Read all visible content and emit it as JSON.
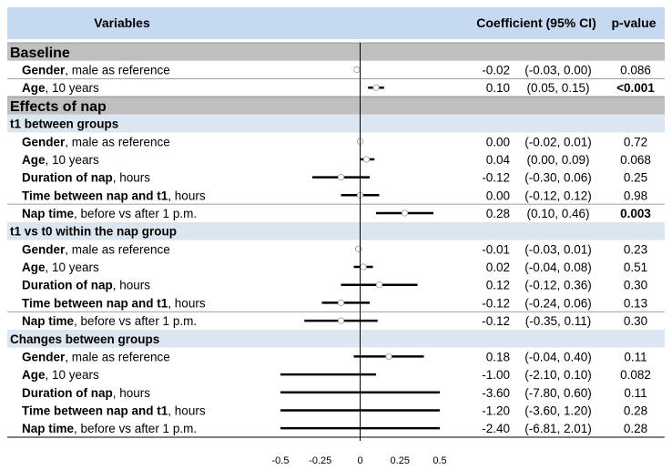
{
  "header": {
    "variables": "Variables",
    "coefficient": "Coefficient (95% CI)",
    "pvalue": "p-value"
  },
  "colors": {
    "header_bg": "#c5d9f1",
    "section_bg": "#bfbfbf",
    "subsection_bg": "#dce6f1",
    "axis": "#000000",
    "line": "#000000"
  },
  "chart_data": {
    "type": "forest",
    "xlim": [
      -0.5,
      0.5
    ],
    "xticks": [
      {
        "value": -0.5,
        "label": "-0.5"
      },
      {
        "value": -0.25,
        "label": "-0.25"
      },
      {
        "value": 0,
        "label": "0"
      },
      {
        "value": 0.25,
        "label": "0.25"
      },
      {
        "value": 0.5,
        "label": "0.5"
      }
    ],
    "reference_line": 0,
    "rows": [
      {
        "kind": "section",
        "label": "Baseline"
      },
      {
        "kind": "item",
        "bold": "Gender",
        "rest": ", male as reference",
        "coef": "-0.02",
        "ci": "(-0.03, 0.00)",
        "p": "0.086",
        "p_bold": false,
        "est": -0.02,
        "lo": -0.03,
        "hi": 0.0
      },
      {
        "kind": "item",
        "bold": "Age",
        "rest": ", 10 years",
        "coef": "0.10",
        "ci": "(0.05, 0.15)",
        "p": "<0.001",
        "p_bold": true,
        "est": 0.1,
        "lo": 0.05,
        "hi": 0.15
      },
      {
        "kind": "section",
        "label": "Effects of nap"
      },
      {
        "kind": "subsection",
        "label": "t1 between groups"
      },
      {
        "kind": "item",
        "bold": "Gender",
        "rest": ", male as reference",
        "coef": "0.00",
        "ci": "(-0.02, 0.01)",
        "p": "0.72",
        "p_bold": false,
        "est": 0.0,
        "lo": -0.02,
        "hi": 0.01
      },
      {
        "kind": "item",
        "bold": "Age",
        "rest": ", 10 years",
        "coef": "0.04",
        "ci": "(0.00, 0.09)",
        "p": "0.068",
        "p_bold": false,
        "est": 0.04,
        "lo": 0.0,
        "hi": 0.09
      },
      {
        "kind": "item",
        "bold": "Duration of nap",
        "rest": ", hours",
        "coef": "-0.12",
        "ci": "(-0.30, 0.06)",
        "p": "0.25",
        "p_bold": false,
        "est": -0.12,
        "lo": -0.3,
        "hi": 0.06
      },
      {
        "kind": "item",
        "bold": "Time between nap and t1",
        "rest": ", hours",
        "coef": "0.00",
        "ci": "(-0.12, 0.12)",
        "p": "0.98",
        "p_bold": false,
        "est": 0.0,
        "lo": -0.12,
        "hi": 0.12
      },
      {
        "kind": "item",
        "bold": "Nap time",
        "rest": ", before vs after 1 p.m.",
        "coef": "0.28",
        "ci": "(0.10, 0.46)",
        "p": "0.003",
        "p_bold": true,
        "est": 0.28,
        "lo": 0.1,
        "hi": 0.46
      },
      {
        "kind": "subsection",
        "label": "t1 vs t0 within the nap group"
      },
      {
        "kind": "item",
        "bold": "Gender",
        "rest": ", male as reference",
        "coef": "-0.01",
        "ci": "(-0.03, 0.01)",
        "p": "0.23",
        "p_bold": false,
        "est": -0.01,
        "lo": -0.03,
        "hi": 0.01
      },
      {
        "kind": "item",
        "bold": "Age",
        "rest": ", 10 years",
        "coef": "0.02",
        "ci": "(-0.04, 0.08)",
        "p": "0.51",
        "p_bold": false,
        "est": 0.02,
        "lo": -0.04,
        "hi": 0.08
      },
      {
        "kind": "item",
        "bold": "Duration of nap",
        "rest": ", hours",
        "coef": "0.12",
        "ci": "(-0.12, 0.36)",
        "p": "0.30",
        "p_bold": false,
        "est": 0.12,
        "lo": -0.12,
        "hi": 0.36
      },
      {
        "kind": "item",
        "bold": "Time between nap and t1",
        "rest": ", hours",
        "coef": "-0.12",
        "ci": "(-0.24, 0.06)",
        "p": "0.13",
        "p_bold": false,
        "est": -0.12,
        "lo": -0.24,
        "hi": 0.06
      },
      {
        "kind": "item",
        "bold": "Nap time",
        "rest": ", before vs after 1 p.m.",
        "coef": "-0.12",
        "ci": "(-0.35, 0.11)",
        "p": "0.30",
        "p_bold": false,
        "est": -0.12,
        "lo": -0.35,
        "hi": 0.11
      },
      {
        "kind": "subsection",
        "label": "Changes between groups"
      },
      {
        "kind": "item",
        "bold": "Gender",
        "rest": ", male as reference",
        "coef": "0.18",
        "ci": "(-0.04, 0.40)",
        "p": "0.11",
        "p_bold": false,
        "est": 0.18,
        "lo": -0.04,
        "hi": 0.4
      },
      {
        "kind": "item",
        "bold": "Age",
        "rest": ", 10 years",
        "coef": "-1.00",
        "ci": "(-2.10, 0.10)",
        "p": "0.082",
        "p_bold": false,
        "est": -1.0,
        "lo": -2.1,
        "hi": 0.1
      },
      {
        "kind": "item",
        "bold": "Duration of nap",
        "rest": ", hours",
        "coef": "-3.60",
        "ci": "(-7.80, 0.60)",
        "p": "0.11",
        "p_bold": false,
        "est": -3.6,
        "lo": -7.8,
        "hi": 0.6
      },
      {
        "kind": "item",
        "bold": "Time between nap and t1",
        "rest": ", hours",
        "coef": "-1.20",
        "ci": "(-3.60, 1.20)",
        "p": "0.28",
        "p_bold": false,
        "est": -1.2,
        "lo": -3.6,
        "hi": 1.2
      },
      {
        "kind": "item",
        "bold": "Nap time",
        "rest": ", before vs after 1 p.m.",
        "coef": "-2.40",
        "ci": "(-6.81, 2.01)",
        "p": "0.28",
        "p_bold": false,
        "est": -2.4,
        "lo": -6.81,
        "hi": 2.01
      }
    ]
  }
}
